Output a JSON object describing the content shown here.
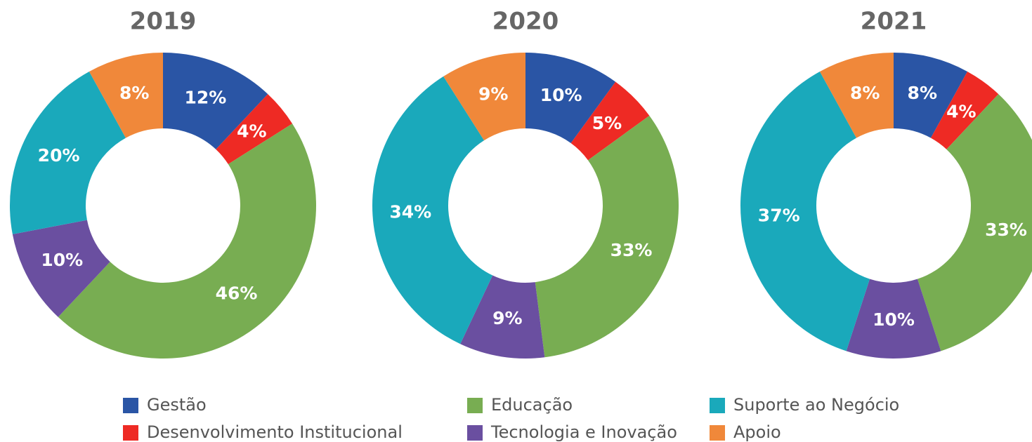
{
  "chart_data": [
    {
      "type": "pie",
      "title": "2019",
      "values": [
        12,
        4,
        46,
        10,
        20,
        8
      ],
      "value_labels": [
        "12%",
        "4%",
        "46%",
        "10%",
        "20%",
        "8%"
      ]
    },
    {
      "type": "pie",
      "title": "2020",
      "values": [
        10,
        5,
        33,
        9,
        34,
        9
      ],
      "value_labels": [
        "10%",
        "5%",
        "33%",
        "9%",
        "34%",
        "9%"
      ]
    },
    {
      "type": "pie",
      "title": "2021",
      "values": [
        8,
        4,
        33,
        10,
        37,
        8
      ],
      "value_labels": [
        "8%",
        "4%",
        "33%",
        "10%",
        "37%",
        "8%"
      ]
    }
  ],
  "legend": [
    {
      "name": "Gestão",
      "color": "#2a55a5"
    },
    {
      "name": "Desenvolvimento Institucional",
      "color": "#ee2a24"
    },
    {
      "name": "Educação",
      "color": "#78ad52"
    },
    {
      "name": "Tecnologia e Inovação",
      "color": "#6a4fa0"
    },
    {
      "name": "Suporte ao Negócio",
      "color": "#1aa9bb"
    },
    {
      "name": "Apoio",
      "color": "#f0883a"
    }
  ]
}
